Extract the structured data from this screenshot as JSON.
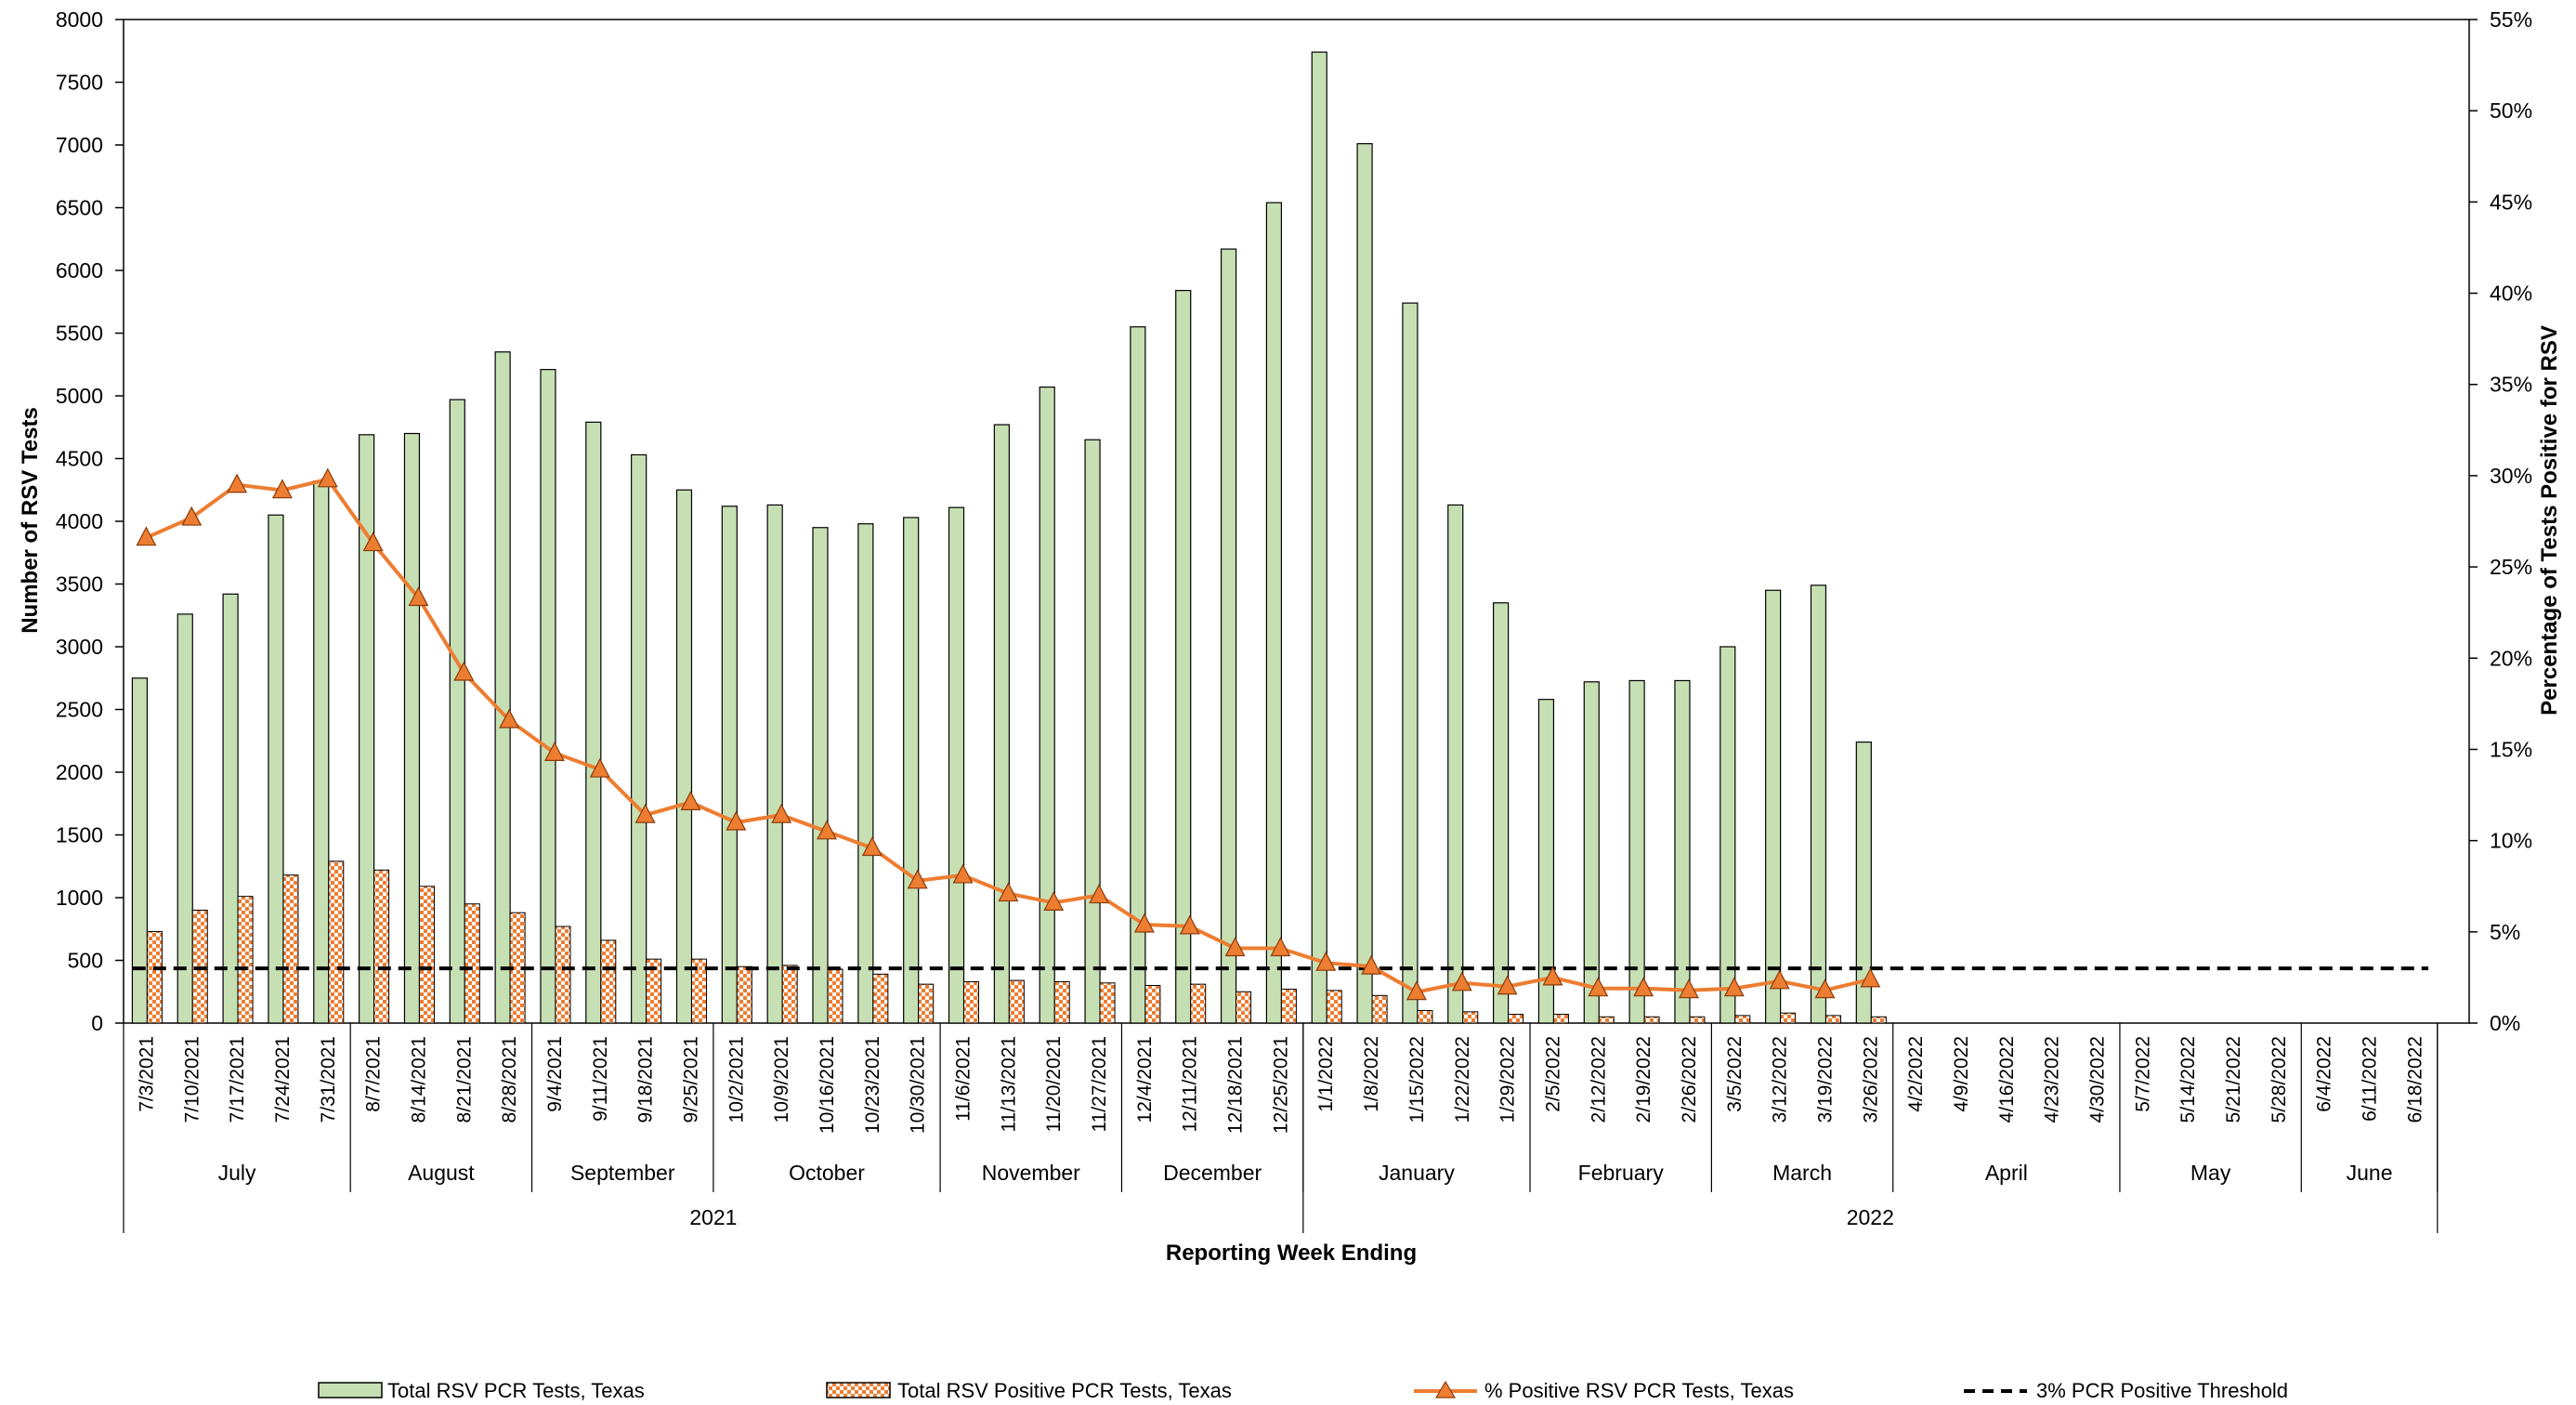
{
  "chart_data": {
    "type": "bar",
    "xlabel": "Reporting Week Ending",
    "ylabel_left": "Number of RSV Tests",
    "ylabel_right": "Percentage of Tests Positive for RSV",
    "ylim_left": [
      0,
      8000
    ],
    "ylim_right": [
      0,
      55
    ],
    "yticks_left": [
      "0",
      "500",
      "1000",
      "1500",
      "2000",
      "2500",
      "3000",
      "3500",
      "4000",
      "4500",
      "5000",
      "5500",
      "6000",
      "6500",
      "7000",
      "7500",
      "8000"
    ],
    "yticks_right": [
      "0%",
      "5%",
      "10%",
      "15%",
      "20%",
      "25%",
      "30%",
      "35%",
      "40%",
      "45%",
      "50%",
      "55%"
    ],
    "categories": [
      "7/3/2021",
      "7/10/2021",
      "7/17/2021",
      "7/24/2021",
      "7/31/2021",
      "8/7/2021",
      "8/14/2021",
      "8/21/2021",
      "8/28/2021",
      "9/4/2021",
      "9/11/2021",
      "9/18/2021",
      "9/25/2021",
      "10/2/2021",
      "10/9/2021",
      "10/16/2021",
      "10/23/2021",
      "10/30/2021",
      "11/6/2021",
      "11/13/2021",
      "11/20/2021",
      "11/27/2021",
      "12/4/2021",
      "12/11/2021",
      "12/18/2021",
      "12/25/2021",
      "1/1/2022",
      "1/8/2022",
      "1/15/2022",
      "1/22/2022",
      "1/29/2022",
      "2/5/2022",
      "2/12/2022",
      "2/19/2022",
      "2/26/2022",
      "3/5/2022",
      "3/12/2022",
      "3/19/2022",
      "3/26/2022",
      "4/2/2022",
      "4/9/2022",
      "4/16/2022",
      "4/23/2022",
      "4/30/2022",
      "5/7/2022",
      "5/14/2022",
      "5/21/2022",
      "5/28/2022",
      "6/4/2022",
      "6/11/2022",
      "6/18/2022"
    ],
    "months": [
      {
        "label": "July",
        "start": 0,
        "end": 5
      },
      {
        "label": "August",
        "start": 5,
        "end": 9
      },
      {
        "label": "September",
        "start": 9,
        "end": 13
      },
      {
        "label": "October",
        "start": 13,
        "end": 18
      },
      {
        "label": "November",
        "start": 18,
        "end": 22
      },
      {
        "label": "December",
        "start": 22,
        "end": 26
      },
      {
        "label": "January",
        "start": 26,
        "end": 31
      },
      {
        "label": "February",
        "start": 31,
        "end": 35
      },
      {
        "label": "March",
        "start": 35,
        "end": 39
      },
      {
        "label": "April",
        "start": 39,
        "end": 44
      },
      {
        "label": "May",
        "start": 44,
        "end": 48
      },
      {
        "label": "June",
        "start": 48,
        "end": 51
      }
    ],
    "years": [
      {
        "label": "2021",
        "start": 0,
        "end": 26
      },
      {
        "label": "2022",
        "start": 26,
        "end": 51
      }
    ],
    "series": [
      {
        "name": "Total RSV PCR Tests, Texas",
        "kind": "bar",
        "color": "#c6e0b4",
        "values": [
          2750,
          3260,
          3420,
          4050,
          4320,
          4690,
          4700,
          4970,
          5350,
          5210,
          4790,
          4530,
          4250,
          4120,
          4130,
          3950,
          3980,
          4030,
          4110,
          4770,
          5070,
          4650,
          5550,
          5840,
          6170,
          6540,
          7740,
          7010,
          5740,
          4130,
          3350,
          2580,
          2720,
          2730,
          2730,
          3000,
          3450,
          3490,
          2240,
          null,
          null,
          null,
          null,
          null,
          null,
          null,
          null,
          null,
          null,
          null,
          null
        ]
      },
      {
        "name": "Total RSV Positive PCR Tests, Texas",
        "kind": "bar-patterned",
        "color": "#ed7d31",
        "values": [
          730,
          900,
          1010,
          1180,
          1290,
          1220,
          1090,
          950,
          880,
          770,
          660,
          510,
          510,
          450,
          460,
          430,
          390,
          310,
          330,
          340,
          330,
          320,
          300,
          310,
          250,
          270,
          260,
          220,
          100,
          90,
          70,
          70,
          50,
          50,
          50,
          60,
          80,
          60,
          50,
          null,
          null,
          null,
          null,
          null,
          null,
          null,
          null,
          null,
          null,
          null,
          null
        ]
      },
      {
        "name": "% Positive RSV PCR Tests, Texas",
        "kind": "line",
        "axis": "right",
        "color": "#ed7d31",
        "values": [
          26.6,
          27.7,
          29.5,
          29.2,
          29.8,
          26.3,
          23.3,
          19.2,
          16.6,
          14.8,
          13.9,
          11.4,
          12.1,
          11.0,
          11.4,
          10.5,
          9.6,
          7.8,
          8.1,
          7.1,
          6.6,
          7.0,
          5.4,
          5.3,
          4.1,
          4.1,
          3.3,
          3.1,
          1.7,
          2.2,
          2.0,
          2.5,
          1.9,
          1.9,
          1.8,
          1.9,
          2.3,
          1.8,
          2.4,
          null,
          null,
          null,
          null,
          null,
          null,
          null,
          null,
          null,
          null,
          null,
          null
        ]
      },
      {
        "name": "3% PCR Positive Threshold",
        "kind": "threshold",
        "axis": "right",
        "color": "#000000",
        "value": 3
      }
    ]
  }
}
